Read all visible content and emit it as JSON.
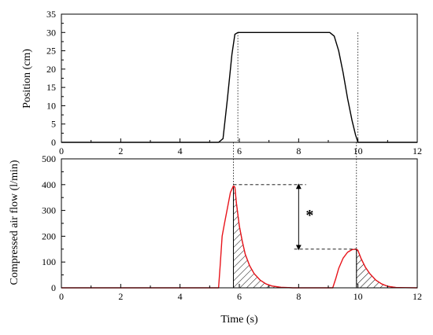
{
  "chart_data": [
    {
      "type": "line",
      "xlabel": "",
      "ylabel": "Position (cm)",
      "xlim": [
        0,
        12
      ],
      "ylim": [
        0,
        35
      ],
      "xticks": [
        "0",
        "2",
        "4",
        "6",
        "8",
        "10",
        "12"
      ],
      "yticks": [
        "0",
        "5",
        "10",
        "15",
        "20",
        "25",
        "30",
        "35"
      ],
      "grid": false,
      "series": [
        {
          "color": "#000000",
          "x": [
            0,
            5.3,
            5.45,
            5.6,
            5.75,
            5.85,
            5.95,
            8.5,
            9.05,
            9.2,
            9.35,
            9.5,
            9.65,
            9.8,
            9.92,
            10.0,
            12
          ],
          "y": [
            0,
            0,
            1,
            12,
            24,
            29.5,
            30,
            30,
            30,
            29,
            25,
            19,
            12,
            6,
            2,
            0,
            0
          ]
        }
      ]
    },
    {
      "type": "line",
      "xlabel": "Time (s)",
      "ylabel": "Compressed air flow (l/min)",
      "xlim": [
        0,
        12
      ],
      "ylim": [
        0,
        500
      ],
      "xticks": [
        "0",
        "2",
        "4",
        "6",
        "8",
        "10",
        "12"
      ],
      "yticks": [
        "0",
        "100",
        "200",
        "300",
        "400",
        "500"
      ],
      "grid": false,
      "series": [
        {
          "color": "#e8141b",
          "x": [
            0,
            5.3,
            5.35,
            5.42,
            5.5,
            5.6,
            5.7,
            5.8,
            5.85,
            5.9,
            6.0,
            6.1,
            6.2,
            6.35,
            6.5,
            6.7,
            6.9,
            7.1,
            7.4,
            7.8,
            8.5,
            9.15,
            9.25,
            9.35,
            9.5,
            9.65,
            9.8,
            9.95,
            10.0,
            10.1,
            10.25,
            10.4,
            10.6,
            10.8,
            11.0,
            11.3,
            12
          ],
          "y": [
            0,
            0,
            80,
            200,
            250,
            310,
            370,
            395,
            390,
            330,
            240,
            180,
            130,
            85,
            55,
            30,
            15,
            7,
            2,
            0,
            0,
            0,
            35,
            75,
            115,
            138,
            148,
            150,
            145,
            115,
            80,
            55,
            30,
            15,
            6,
            1,
            0
          ]
        }
      ],
      "annotations": [
        {
          "type": "bracket",
          "from": 400,
          "to": 150,
          "label": "*"
        }
      ]
    }
  ]
}
